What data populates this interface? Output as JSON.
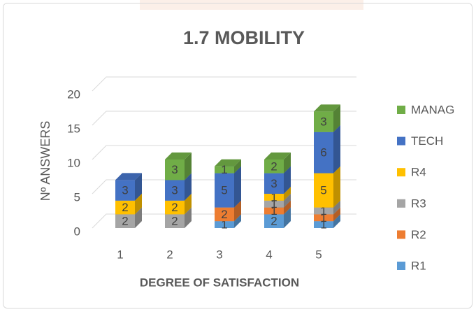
{
  "chart_data": {
    "type": "bar3d_stacked",
    "title": "1.7 MOBILITY",
    "x_label": "DEGREE OF SATISFACTION",
    "y_label": "Nº ANSWERS",
    "categories": [
      "1",
      "2",
      "3",
      "4",
      "5"
    ],
    "series": [
      {
        "name": "R1",
        "color": "#5b9bd5",
        "values": [
          0,
          0,
          1,
          2,
          1
        ]
      },
      {
        "name": "R2",
        "color": "#ed7d31",
        "values": [
          0,
          0,
          2,
          1,
          1
        ]
      },
      {
        "name": "R3",
        "color": "#a5a5a5",
        "values": [
          2,
          2,
          0,
          1,
          1
        ]
      },
      {
        "name": "R4",
        "color": "#ffc000",
        "values": [
          2,
          2,
          0,
          1,
          5
        ]
      },
      {
        "name": "TECH",
        "color": "#4472c4",
        "values": [
          3,
          3,
          5,
          3,
          6
        ]
      },
      {
        "name": "MANAG",
        "color": "#70ad47",
        "values": [
          0,
          3,
          1,
          2,
          3
        ]
      }
    ],
    "ylim": [
      0,
      20
    ],
    "yticks": [
      0,
      5,
      10,
      15,
      20
    ],
    "grid": true,
    "legend": "right"
  }
}
